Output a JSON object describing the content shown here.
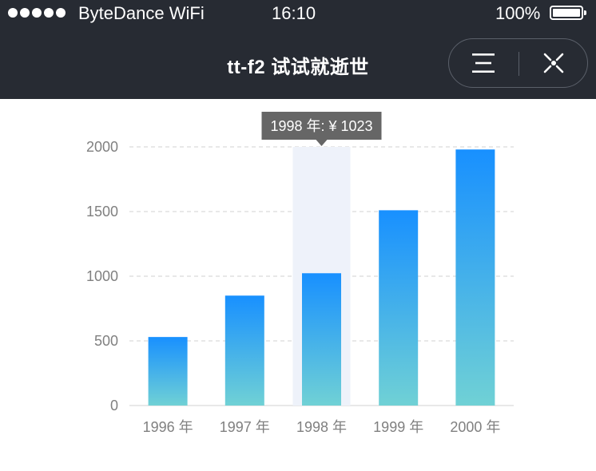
{
  "status_bar": {
    "carrier": "ByteDance WiFi",
    "time": "16:10",
    "battery": "100%",
    "signal_bars": 5
  },
  "nav": {
    "title": "tt-f2 试试就逝世",
    "menu_icon": "menu-icon",
    "close_icon": "close-icon"
  },
  "colors": {
    "bar_top": "#1890ff",
    "bar_bottom": "#70d1d5",
    "highlight": "#eef2fa",
    "grid": "#e0e0e0",
    "tooltip_bg": "#666666",
    "nav_bg": "#272b33"
  },
  "tooltip": {
    "label": "1998 年: ¥ 1023",
    "category": "1998 年"
  },
  "chart_data": {
    "type": "bar",
    "categories": [
      "1996 年",
      "1997 年",
      "1998 年",
      "1999 年",
      "2000 年"
    ],
    "values": [
      530,
      850,
      1023,
      1510,
      1980
    ],
    "yticks": [
      0,
      500,
      1000,
      1500,
      2000
    ],
    "ylim": [
      0,
      2000
    ],
    "grid": true,
    "highlighted_category": "1998 年"
  }
}
